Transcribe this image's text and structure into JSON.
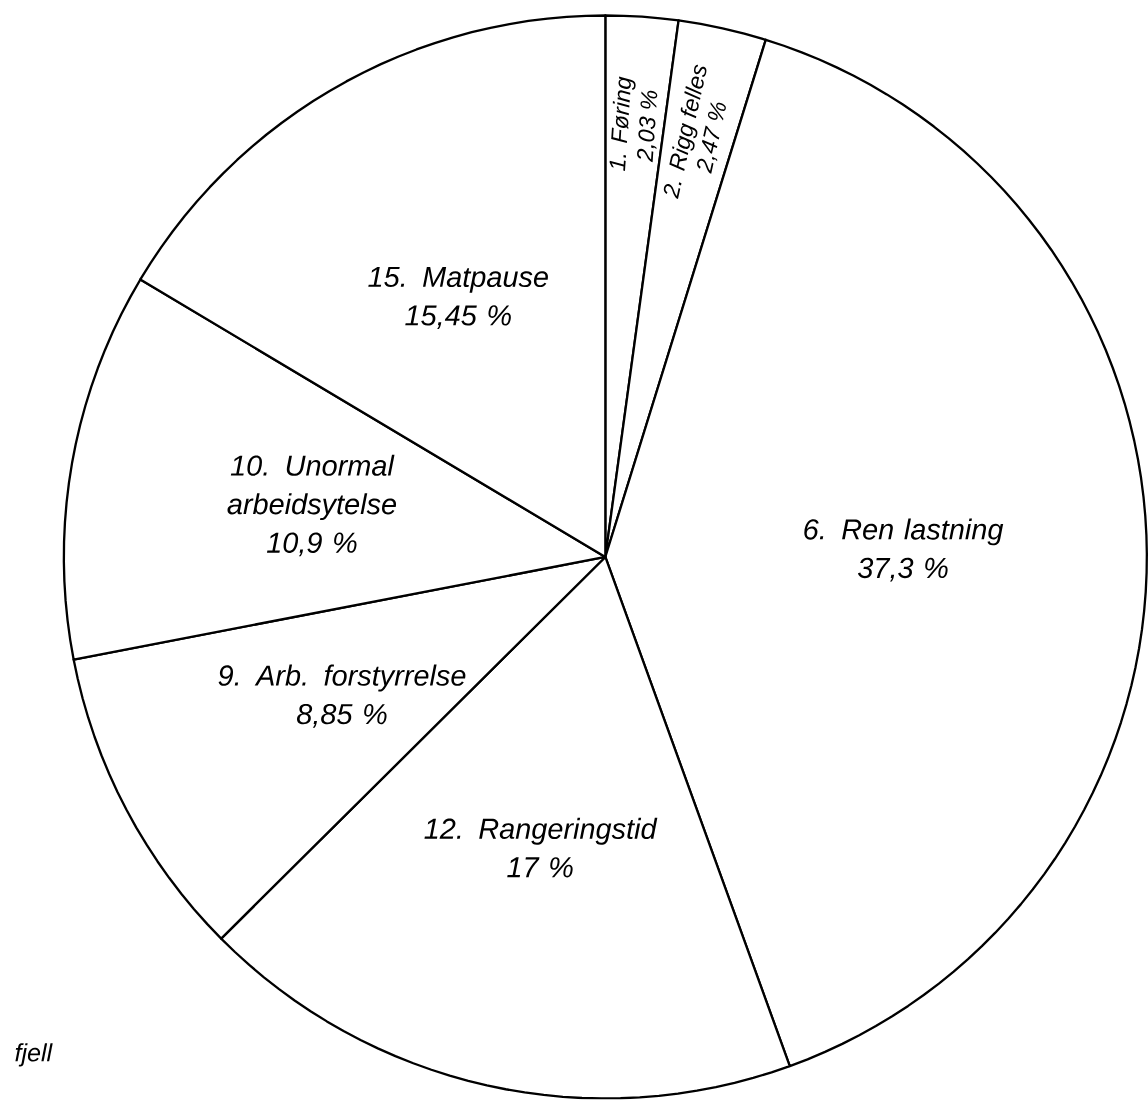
{
  "chart_data": {
    "type": "pie",
    "categories": [
      "1. Føring",
      "2. Rigg felles",
      "6. Ren lastning",
      "12. Rangeringstid",
      "9. Arb. forstyrrelse",
      "10. Unormal arbeidsytelse",
      "15. Matpause"
    ],
    "values": [
      2.03,
      2.47,
      37.3,
      17,
      8.85,
      10.9,
      15.45
    ],
    "value_labels": [
      "2,03 %",
      "2,47 %",
      "37,3 %",
      "17 %",
      "8,85 %",
      "10,9 %",
      "15,45 %"
    ],
    "colors": [
      "#ffffff",
      "#ffffff",
      "#ffffff",
      "#ffffff",
      "#ffffff",
      "#ffffff",
      "#ffffff"
    ],
    "annotations": [
      "fjell"
    ]
  }
}
